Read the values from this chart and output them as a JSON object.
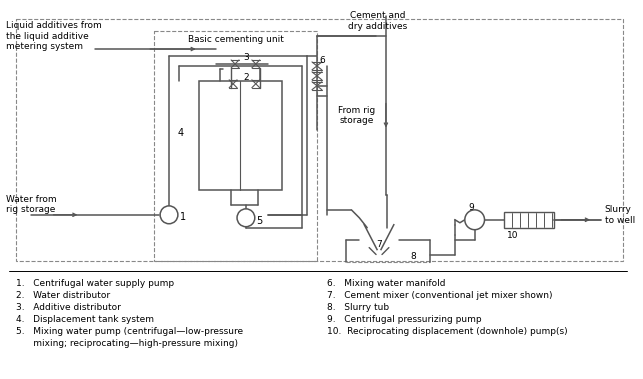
{
  "bg_color": "#ffffff",
  "line_color": "#555555",
  "legend_items_left": [
    "1.   Centrifugal water supply pump",
    "2.   Water distributor",
    "3.   Additive distributor",
    "4.   Displacement tank system",
    "5.   Mixing water pump (centrifugal—low-pressure",
    "      mixing; reciprocating—high-pressure mixing)"
  ],
  "legend_items_right": [
    "6.   Mixing water manifold",
    "7.   Cement mixer (conventional jet mixer shown)",
    "8.   Slurry tub",
    "9.   Centrifugal pressurizing pump",
    "10.  Reciprocating displacement (downhole) pump(s)"
  ],
  "label_liquid_additives": "Liquid additives from\nthe liquid additive\nmetering system",
  "label_cement": "Cement and\ndry additives",
  "label_basic_cementing": "Basic cementing unit",
  "label_water_from": "Water from\nrig storage",
  "label_from_rig": "From rig\nstorage",
  "label_slurry": "Slurry\nto well"
}
